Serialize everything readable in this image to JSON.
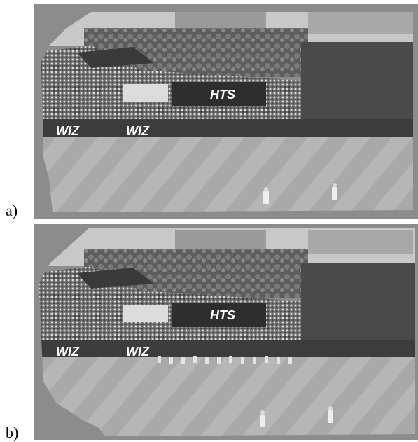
{
  "figure": {
    "panels": [
      {
        "label": "a)",
        "signs": [
          "HTS",
          "WIZ",
          "WIZ"
        ]
      },
      {
        "label": "b)",
        "signs": [
          "HTS",
          "WIZ",
          "WIZ"
        ]
      }
    ]
  }
}
